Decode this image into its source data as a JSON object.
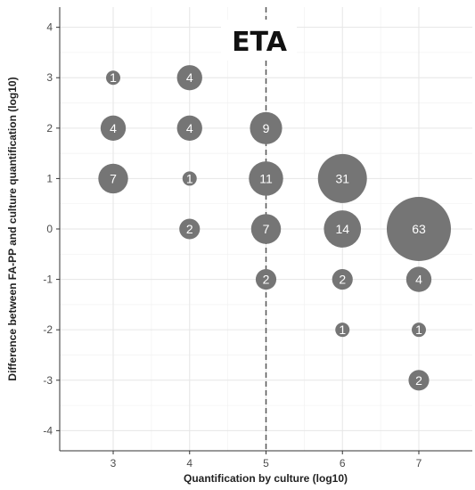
{
  "chart_data": {
    "type": "scatter",
    "title": "ETA",
    "xlabel": "Quantification by culture (log10)",
    "ylabel": "Difference between FA-PP and culture quantification (log10)",
    "xlim": [
      2.3,
      7.7
    ],
    "ylim": [
      -4.4,
      4.4
    ],
    "x_ticks": [
      3,
      4,
      5,
      6,
      7
    ],
    "y_ticks": [
      -4,
      -3,
      -2,
      -1,
      0,
      1,
      2,
      3,
      4
    ],
    "grid": true,
    "reference_line": {
      "x": 5,
      "style": "dashed"
    },
    "bubble_color": "#757575",
    "points": [
      {
        "x": 3,
        "y": 3,
        "n": 1
      },
      {
        "x": 3,
        "y": 2,
        "n": 4
      },
      {
        "x": 3,
        "y": 1,
        "n": 7
      },
      {
        "x": 4,
        "y": 3,
        "n": 4
      },
      {
        "x": 4,
        "y": 2,
        "n": 4
      },
      {
        "x": 4,
        "y": 1,
        "n": 1
      },
      {
        "x": 4,
        "y": 0,
        "n": 2
      },
      {
        "x": 5,
        "y": 2,
        "n": 9
      },
      {
        "x": 5,
        "y": 1,
        "n": 11
      },
      {
        "x": 5,
        "y": 0,
        "n": 7
      },
      {
        "x": 5,
        "y": -1,
        "n": 2
      },
      {
        "x": 6,
        "y": 1,
        "n": 31
      },
      {
        "x": 6,
        "y": 0,
        "n": 14
      },
      {
        "x": 6,
        "y": -1,
        "n": 2
      },
      {
        "x": 6,
        "y": -2,
        "n": 1
      },
      {
        "x": 7,
        "y": 0,
        "n": 63
      },
      {
        "x": 7,
        "y": -1,
        "n": 4
      },
      {
        "x": 7,
        "y": -2,
        "n": 1
      },
      {
        "x": 7,
        "y": -3,
        "n": 2
      }
    ]
  }
}
